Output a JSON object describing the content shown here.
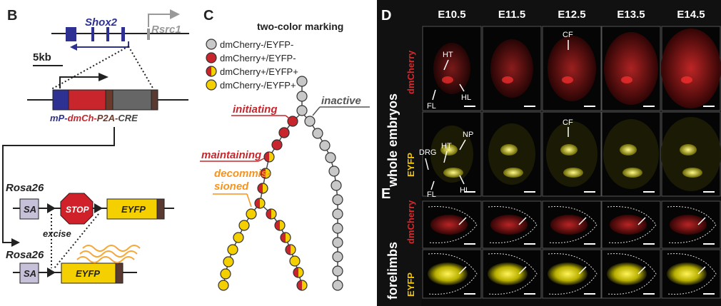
{
  "panels": {
    "B": "B",
    "C": "C",
    "D": "D",
    "E": "E"
  },
  "panelB": {
    "gene_shox2": "Shox2",
    "gene_rsrc1": "Rsrc1",
    "scale": "5kb",
    "construct_mP": "mP-",
    "construct_dmCh": "dmCh-",
    "construct_P2A": "P2A-",
    "construct_CRE": "CRE",
    "rosa_top": "Rosa26",
    "rosa_bottom": "Rosa26",
    "sa_top": "SA",
    "sa_bottom": "SA",
    "stop": "STOP",
    "eyfp_top": "EYFP",
    "eyfp_bottom": "EYFP",
    "excise": "excise"
  },
  "panelC": {
    "title": "two-color marking",
    "legend": [
      {
        "label": "dmCherry-/EYFP-",
        "fill": "#c8c8c8",
        "split": false
      },
      {
        "label": "dmCherry+/EYFP-",
        "fill": "#c8262c",
        "split": false
      },
      {
        "label": "dmCherry+/EYFP+",
        "fill": "#c8262c",
        "fill2": "#f5d000",
        "split": true
      },
      {
        "label": "dmCherry-/EYFP+",
        "fill": "#f5d000",
        "split": false
      }
    ],
    "initiating": "initiating",
    "inactive": "inactive",
    "maintaining": "maintaining",
    "decommissioned_1": "decommis-",
    "decommissioned_2": "sioned"
  },
  "panelD": {
    "stages": [
      "E10.5",
      "E11.5",
      "E12.5",
      "E13.5",
      "E14.5"
    ],
    "row_label": "whole embryos",
    "channel_red": "dmCherry",
    "channel_yellow": "EYFP",
    "annot_HT": "HT",
    "annot_FL": "FL",
    "annot_HL": "HL",
    "annot_CF": "CF",
    "annot_CF2": "CF",
    "annot_DRG": "DRG",
    "annot_HT2": "HT",
    "annot_NP": "NP",
    "annot_FL2": "FL",
    "annot_HL2": "HL"
  },
  "panelE": {
    "row_label": "forelimbs",
    "channel_red": "dmCherry",
    "channel_yellow": "EYFP"
  },
  "colors": {
    "red": "#c8262c",
    "yellow": "#f5d000",
    "gray": "#c8c8c8",
    "blue": "#2e3192",
    "orange": "#f7941d",
    "panel_bg": "#1a1a1a"
  }
}
